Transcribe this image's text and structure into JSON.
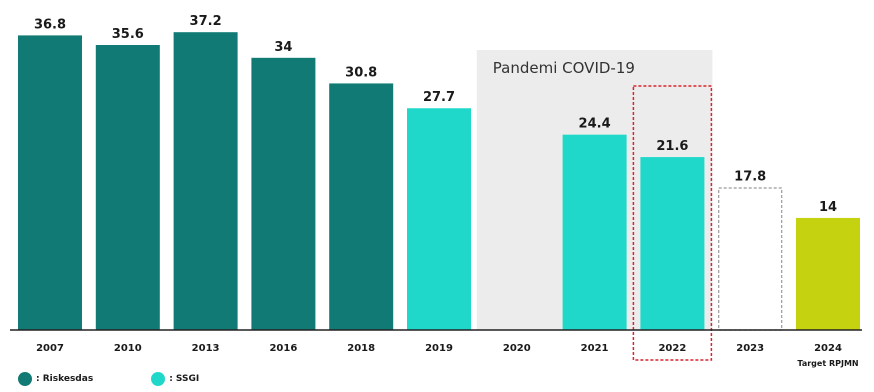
{
  "chart_data": {
    "type": "bar",
    "categories": [
      "2007",
      "2010",
      "2013",
      "2016",
      "2018",
      "2019",
      "2020",
      "2021",
      "2022",
      "2023",
      "2024"
    ],
    "values": [
      36.8,
      35.6,
      37.2,
      34,
      30.8,
      27.7,
      null,
      24.4,
      21.6,
      17.8,
      14
    ],
    "value_labels": [
      "36.8",
      "35.6",
      "37.2",
      "34",
      "30.8",
      "27.7",
      "",
      "24.4",
      "21.6",
      "17.8",
      "14"
    ],
    "bar_kind": [
      "riskesdas",
      "riskesdas",
      "riskesdas",
      "riskesdas",
      "riskesdas",
      "ssgi",
      "none",
      "ssgi",
      "ssgi",
      "projection",
      "target"
    ],
    "subtick_2024": "Target RPJMN",
    "ylim": [
      0,
      40
    ],
    "grid": false,
    "annotations": [
      {
        "text": "Pandemi COVID-19",
        "covers": [
          "2020",
          "2021",
          "2022"
        ]
      }
    ],
    "highlight": "2022",
    "legend": [
      {
        "label": ": Riskesdas",
        "color": "#127a74"
      },
      {
        "label": ": SSGI",
        "color": "#1fd8c9"
      }
    ],
    "legend_placement": "bottom-left"
  },
  "colors": {
    "riskesdas": "#127a74",
    "ssgi": "#1fd8c9",
    "target": "#c5d20f",
    "projection_border": "#999999",
    "highlight_border": "#d9232d",
    "pandemic_band": "#ececec",
    "axis": "#222222"
  }
}
